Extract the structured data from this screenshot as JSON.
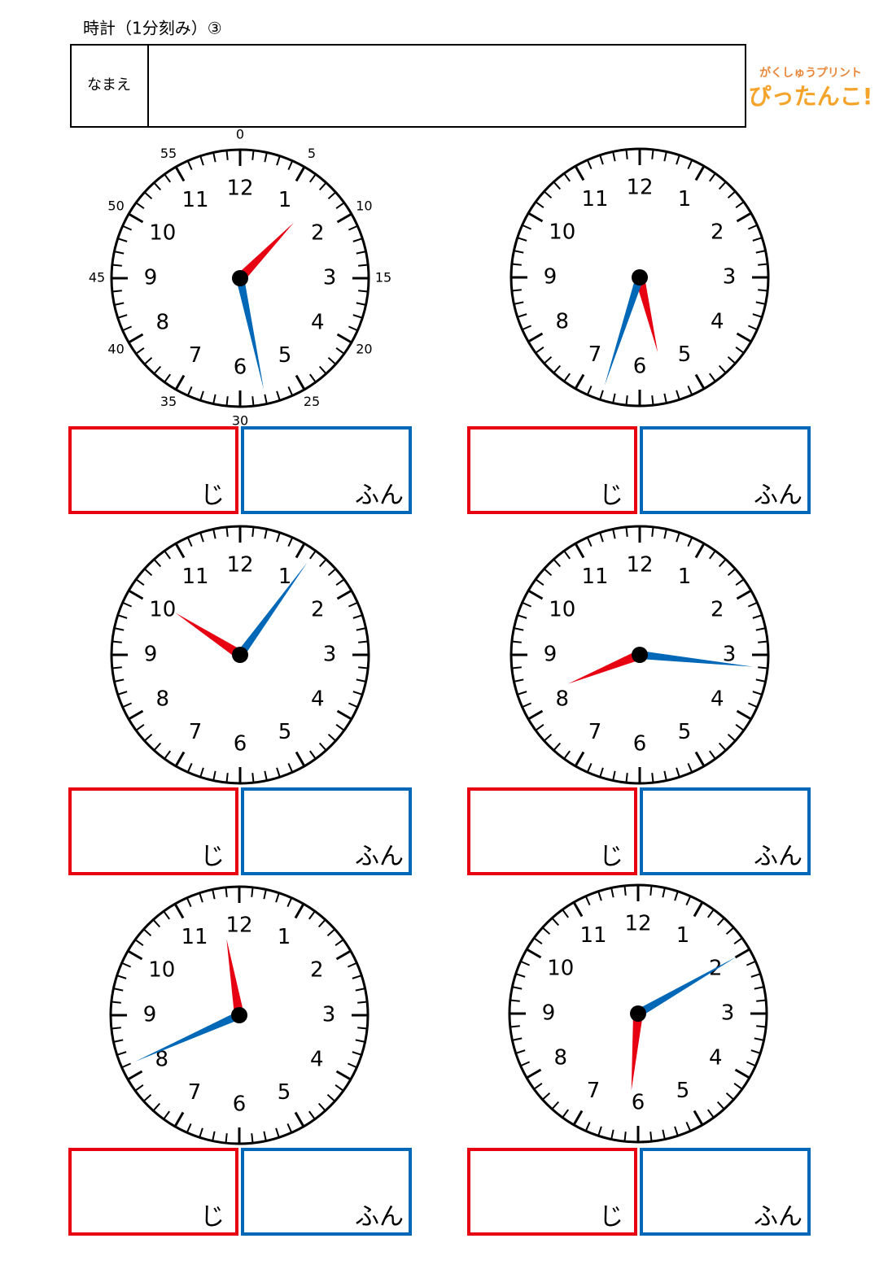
{
  "header": {
    "title": "時計（1分刻み）③",
    "name_label": "なまえ"
  },
  "logo": {
    "tagline": "がくしゅうプリント",
    "name": "ぴったんこ!"
  },
  "dial_numbers": [
    1,
    2,
    3,
    4,
    5,
    6,
    7,
    8,
    9,
    10,
    11,
    12
  ],
  "minute_labels": [
    0,
    5,
    10,
    15,
    20,
    25,
    30,
    35,
    40,
    45,
    50,
    55
  ],
  "clocks": [
    {
      "hour": 1,
      "minute": 28
    },
    {
      "hour": 5,
      "minute": 33
    },
    {
      "hour": 10,
      "minute": 6
    },
    {
      "hour": 8,
      "minute": 16
    },
    {
      "hour": 11,
      "minute": 41
    },
    {
      "hour": 6,
      "minute": 10
    }
  ],
  "answer_labels": {
    "hour": "じ",
    "minute": "ふん"
  }
}
